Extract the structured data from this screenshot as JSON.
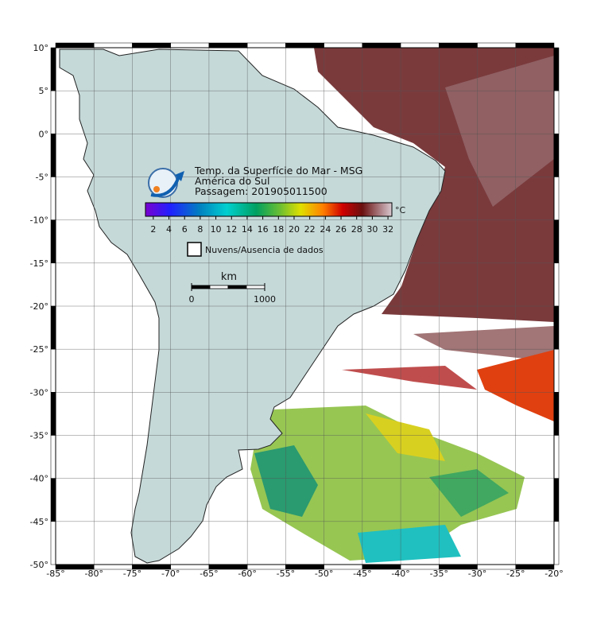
{
  "map": {
    "title_lines": [
      "Temp. da Superfície do Mar - MSG",
      "América do Sul",
      "Passagem: 201905011500"
    ],
    "xlim": [
      -85,
      -20
    ],
    "ylim": [
      -50,
      10
    ],
    "grid": true,
    "xticks": [
      {
        "value": -85,
        "label": "-85°"
      },
      {
        "value": -80,
        "label": "-80°"
      },
      {
        "value": -75,
        "label": "-75°"
      },
      {
        "value": -70,
        "label": "-70°"
      },
      {
        "value": -65,
        "label": "-65°"
      },
      {
        "value": -60,
        "label": "-60°"
      },
      {
        "value": -55,
        "label": "-55°"
      },
      {
        "value": -50,
        "label": "-50°"
      },
      {
        "value": -45,
        "label": "-45°"
      },
      {
        "value": -40,
        "label": "-40°"
      },
      {
        "value": -35,
        "label": "-35°"
      },
      {
        "value": -30,
        "label": "-30°"
      },
      {
        "value": -25,
        "label": "-25°"
      },
      {
        "value": -20,
        "label": "-20°"
      }
    ],
    "yticks": [
      {
        "value": 10,
        "label": "10°"
      },
      {
        "value": 5,
        "label": "5°"
      },
      {
        "value": 0,
        "label": "0°"
      },
      {
        "value": -5,
        "label": "-5°"
      },
      {
        "value": -10,
        "label": "-10°"
      },
      {
        "value": -15,
        "label": "-15°"
      },
      {
        "value": -20,
        "label": "-20°"
      },
      {
        "value": -25,
        "label": "-25°"
      },
      {
        "value": -30,
        "label": "-30°"
      },
      {
        "value": -35,
        "label": "-35°"
      },
      {
        "value": -40,
        "label": "-40°"
      },
      {
        "value": -45,
        "label": "-45°"
      },
      {
        "value": -50,
        "label": "-50°"
      }
    ]
  },
  "colorbar": {
    "unit": "°C",
    "clim": [
      1,
      32.5
    ],
    "ticks": [
      2,
      4,
      6,
      8,
      10,
      12,
      14,
      16,
      18,
      20,
      22,
      24,
      26,
      28,
      30,
      32
    ]
  },
  "legend": {
    "label": "Nuvens/Ausencia de dados"
  },
  "scale_bar": {
    "unit": "km",
    "ticks": [
      0,
      1000
    ]
  }
}
